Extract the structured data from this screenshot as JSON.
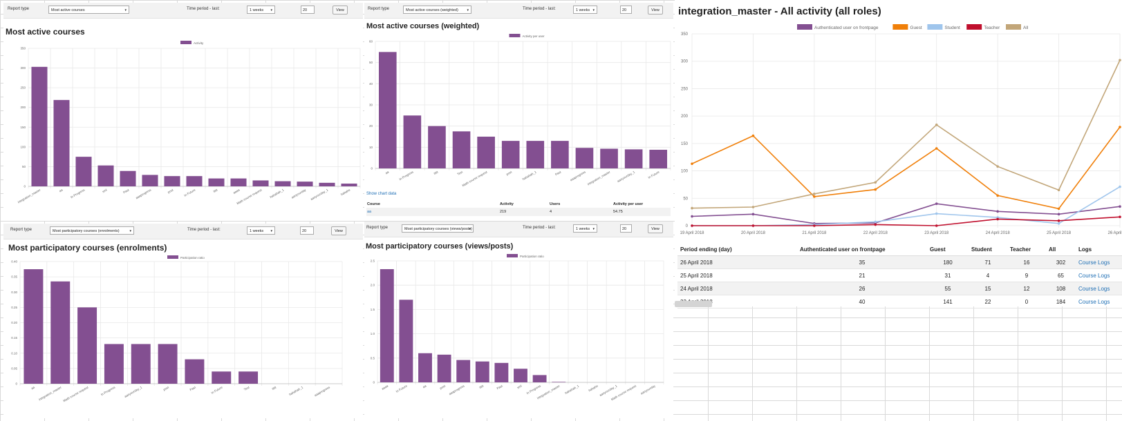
{
  "colors": {
    "bar": "#834f91",
    "grid": "#e8e8e8",
    "axis": "#888",
    "link": "#1f6fb5"
  },
  "panels": {
    "p1": {
      "form": {
        "report_type_label": "Report type",
        "report_type_value": "Most active courses",
        "time_label": "Time period - last:",
        "time_value": "1 weeks",
        "num_value": "20",
        "view_label": "View"
      },
      "title": "Most active courses"
    },
    "p2": {
      "form": {
        "report_type_label": "Report type",
        "report_type_value": "Most active courses (weighted)",
        "time_label": "Time period - last:",
        "time_value": "1 weeks",
        "num_value": "20",
        "view_label": "View"
      },
      "title": "Most active courses (weighted)",
      "show_chart_data": "Show chart data",
      "table": {
        "headers": [
          "Course",
          "Activity",
          "Users",
          "Activity per user"
        ],
        "row": [
          "aa",
          "219",
          "4",
          "54.75"
        ]
      }
    },
    "p3": {
      "form": {
        "report_type_label": "Report type",
        "report_type_value": "Most participatory courses (enrolments)",
        "time_label": "Time period - last:",
        "time_value": "1 weeks",
        "num_value": "20",
        "view_label": "View"
      },
      "title": "Most participatory courses (enrolments)"
    },
    "p4": {
      "form": {
        "report_type_label": "Report type",
        "report_type_value": "Most participatory courses (views/posts)",
        "time_label": "Time period - last:",
        "time_value": "1 weeks",
        "num_value": "20",
        "view_label": "View"
      },
      "title": "Most participatory courses (views/posts)"
    },
    "p5": {
      "title": "integration_master - All activity (all roles)",
      "table": {
        "headers": [
          "Period ending (day)",
          "Authenticated user on frontpage",
          "Guest",
          "Student",
          "Teacher",
          "All",
          "Logs"
        ],
        "rows": [
          [
            "26 April 2018",
            "35",
            "180",
            "71",
            "16",
            "302",
            "Course Logs"
          ],
          [
            "25 April 2018",
            "21",
            "31",
            "4",
            "9",
            "65",
            "Course Logs"
          ],
          [
            "24 April 2018",
            "26",
            "55",
            "15",
            "12",
            "108",
            "Course Logs"
          ],
          [
            "23 April 2018",
            "40",
            "141",
            "22",
            "0",
            "184",
            "Course Logs"
          ]
        ]
      }
    }
  },
  "chart_data": [
    {
      "type": "bar",
      "title": "Most active courses",
      "legend": [
        "Activity"
      ],
      "legend_position": "top",
      "categories": [
        "integration_master",
        "aa",
        "In Progress",
        "sml",
        "Past",
        "aaaprogress",
        "post",
        "In Future",
        "ttttt",
        "aaaa",
        "Math course request",
        "hahahah_1",
        "aanyourday",
        "aanyourday_1",
        "hahahe"
      ],
      "series": [
        {
          "name": "Activity",
          "values": [
            303,
            219,
            75,
            53,
            39,
            29,
            26,
            26,
            20,
            20,
            15,
            13,
            12,
            9,
            7
          ]
        }
      ],
      "ylim": [
        0,
        350
      ],
      "yticks": [
        0,
        50,
        100,
        150,
        200,
        250,
        300,
        350
      ],
      "grid": true
    },
    {
      "type": "bar",
      "title": "Most active courses (weighted)",
      "legend": [
        "Activity per user"
      ],
      "legend_position": "top",
      "categories": [
        "aa",
        "In Progress",
        "ttttt",
        "Test",
        "Math course request",
        "post",
        "hahahah_1",
        "Past",
        "aaaprogress",
        "integration_master",
        "aanyourday_1",
        "In Future"
      ],
      "series": [
        {
          "name": "Activity per user",
          "values": [
            55,
            25,
            20,
            17.5,
            15,
            13,
            13,
            13,
            9.7,
            9.3,
            9,
            8.8
          ]
        }
      ],
      "ylim": [
        0,
        60
      ],
      "yticks": [
        0,
        10,
        20,
        30,
        40,
        50,
        60
      ],
      "grid": true
    },
    {
      "type": "bar",
      "title": "Most participatory courses (enrolments)",
      "legend": [
        "Participation ratio"
      ],
      "legend_position": "top",
      "categories": [
        "aa",
        "integration_master",
        "Math course request",
        "In Progress",
        "aanyourday_1",
        "post",
        "Past",
        "In Future",
        "Test",
        "ttttt",
        "hahahah_1",
        "aaaprogress"
      ],
      "series": [
        {
          "name": "Participation ratio",
          "values": [
            0.375,
            0.335,
            0.25,
            0.13,
            0.13,
            0.13,
            0.08,
            0.04,
            0.04,
            0,
            0,
            0
          ]
        }
      ],
      "ylim": [
        0,
        0.4
      ],
      "yticks": [
        "0",
        "0.05",
        "0.10",
        "0.15",
        "0.20",
        "0.25",
        "0.30",
        "0.35",
        "0.40"
      ],
      "grid": true
    },
    {
      "type": "bar",
      "title": "Most participatory courses (views/posts)",
      "legend": [
        "Participation ratio"
      ],
      "legend_position": "top",
      "categories": [
        "aaaa",
        "In Future",
        "aa",
        "post",
        "aaaprogress",
        "ttttt",
        "Past",
        "sml",
        "In Progress",
        "integration_master",
        "hahahah_1",
        "hahahe",
        "aanyourday_1",
        "Math course request",
        "aanyourday"
      ],
      "series": [
        {
          "name": "Participation ratio",
          "values": [
            2.33,
            1.7,
            0.6,
            0.57,
            0.46,
            0.43,
            0.4,
            0.28,
            0.15,
            0.01,
            0,
            0,
            0,
            0,
            0
          ]
        }
      ],
      "ylim": [
        0,
        2.5
      ],
      "yticks": [
        "0",
        "0.5",
        "1.0",
        "1.5",
        "2.0",
        "2.5"
      ],
      "grid": true
    },
    {
      "type": "line",
      "title": "integration_master - All activity (all roles)",
      "legend_position": "top",
      "x": [
        "19 April 2018",
        "20 April 2018",
        "21 April 2018",
        "22 April 2018",
        "23 April 2018",
        "24 April 2018",
        "25 April 2018",
        "26 April 2018"
      ],
      "series": [
        {
          "name": "Authenticated user on frontpage",
          "color": "#834f91",
          "values": [
            17,
            21,
            4,
            5,
            40,
            26,
            21,
            35
          ]
        },
        {
          "name": "Guest",
          "color": "#f07f09",
          "values": [
            113,
            164,
            53,
            66,
            141,
            55,
            31,
            180
          ]
        },
        {
          "name": "Student",
          "color": "#9fc5ec",
          "values": [
            0,
            0,
            2,
            7,
            22,
            15,
            4,
            71
          ]
        },
        {
          "name": "Teacher",
          "color": "#c00f2d",
          "values": [
            0,
            0,
            0,
            2,
            0,
            12,
            9,
            16
          ]
        },
        {
          "name": "All",
          "color": "#c2a679",
          "values": [
            32,
            34,
            58,
            79,
            184,
            108,
            65,
            302
          ]
        }
      ],
      "ylim": [
        0,
        350
      ],
      "yticks": [
        0,
        50,
        100,
        150,
        200,
        250,
        300,
        350
      ],
      "grid": true
    }
  ]
}
